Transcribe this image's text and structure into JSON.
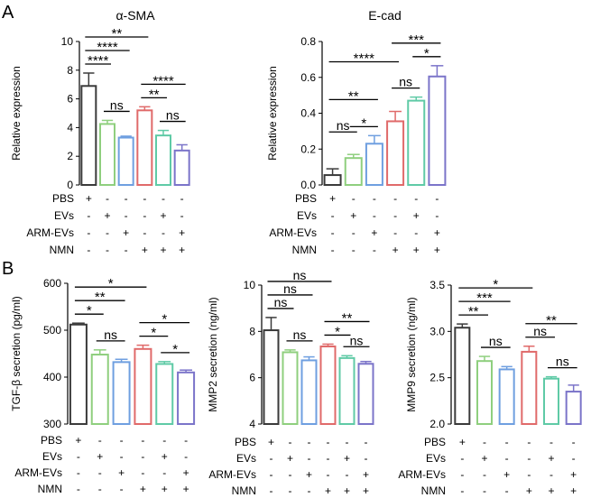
{
  "panel_letters": [
    "A",
    "B"
  ],
  "colors": [
    "#3a3a3a",
    "#8fcf7e",
    "#6f9fe0",
    "#e06a6a",
    "#5fcaa6",
    "#7b74c9"
  ],
  "row_labels": [
    "PBS",
    "EVs",
    "ARM-EVs",
    "NMN"
  ],
  "treatment_signs": [
    [
      "+",
      "-",
      "-",
      "-",
      "-",
      "-"
    ],
    [
      "-",
      "+",
      "-",
      "-",
      "+",
      "-"
    ],
    [
      "-",
      "-",
      "+",
      "-",
      "-",
      "+"
    ],
    [
      "-",
      "-",
      "-",
      "+",
      "+",
      "+"
    ]
  ],
  "chart_data": [
    {
      "type": "bar",
      "panel": "A",
      "title": "α-SMA",
      "ylabel": "Relative expression",
      "ylim": [
        0,
        10
      ],
      "yticks": [
        "0",
        "2",
        "4",
        "6",
        "8",
        "10"
      ],
      "values": [
        6.9,
        4.25,
        3.3,
        5.2,
        3.45,
        2.4
      ],
      "errors": [
        0.9,
        0.25,
        0.1,
        0.25,
        0.35,
        0.4
      ],
      "significance": [
        {
          "i": 0,
          "j": 3,
          "label": "**",
          "level": 3
        },
        {
          "i": 0,
          "j": 2,
          "label": "****",
          "level": 2
        },
        {
          "i": 0,
          "j": 1,
          "label": "****",
          "level": 1
        },
        {
          "i": 1,
          "j": 2,
          "label": "ns",
          "level": 1
        },
        {
          "i": 3,
          "j": 5,
          "label": "****",
          "level": 2
        },
        {
          "i": 3,
          "j": 4,
          "label": "**",
          "level": 1
        },
        {
          "i": 4,
          "j": 5,
          "label": "ns",
          "level": 1
        }
      ]
    },
    {
      "type": "bar",
      "panel": "A",
      "title": "E-cad",
      "ylabel": "Relative expression",
      "ylim": [
        0,
        0.8
      ],
      "yticks": [
        "0.0",
        "0.2",
        "0.4",
        "0.6",
        "0.8"
      ],
      "values": [
        0.055,
        0.15,
        0.23,
        0.355,
        0.47,
        0.605
      ],
      "errors": [
        0.035,
        0.02,
        0.045,
        0.055,
        0.02,
        0.06
      ],
      "significance": [
        {
          "i": 0,
          "j": 3,
          "label": "****",
          "level": 4
        },
        {
          "i": 0,
          "j": 2,
          "label": "**",
          "level": 3
        },
        {
          "i": 0,
          "j": 1,
          "label": "ns",
          "level": 2
        },
        {
          "i": 1,
          "j": 2,
          "label": "*",
          "level": 1
        },
        {
          "i": 3,
          "j": 5,
          "label": "***",
          "level": 2
        },
        {
          "i": 3,
          "j": 4,
          "label": "ns",
          "level": 1
        },
        {
          "i": 4,
          "j": 5,
          "label": "*",
          "level": 1
        }
      ]
    },
    {
      "type": "bar",
      "panel": "B",
      "title": "",
      "ylabel": "TGF-β secretion (pg/ml)",
      "ylim": [
        300,
        600
      ],
      "yticks": [
        "300",
        "400",
        "500",
        "600"
      ],
      "values": [
        512,
        448,
        432,
        460,
        428,
        410
      ],
      "errors": [
        3,
        10,
        6,
        8,
        5,
        5
      ],
      "significance": [
        {
          "i": 0,
          "j": 3,
          "label": "*",
          "level": 3
        },
        {
          "i": 0,
          "j": 2,
          "label": "**",
          "level": 2
        },
        {
          "i": 0,
          "j": 1,
          "label": "*",
          "level": 1
        },
        {
          "i": 1,
          "j": 2,
          "label": "ns",
          "level": 1
        },
        {
          "i": 3,
          "j": 5,
          "label": "*",
          "level": 2
        },
        {
          "i": 3,
          "j": 4,
          "label": "*",
          "level": 1
        },
        {
          "i": 4,
          "j": 5,
          "label": "*",
          "level": 1
        }
      ]
    },
    {
      "type": "bar",
      "panel": "B",
      "title": "",
      "ylabel": "MMP2 secretion (ng/ml)",
      "ylim": [
        4,
        10
      ],
      "yticks": [
        "4",
        "6",
        "8",
        "10"
      ],
      "values": [
        8.05,
        7.1,
        6.75,
        7.35,
        6.85,
        6.6
      ],
      "errors": [
        0.55,
        0.1,
        0.15,
        0.1,
        0.1,
        0.1
      ],
      "significance": [
        {
          "i": 0,
          "j": 3,
          "label": "ns",
          "level": 3
        },
        {
          "i": 0,
          "j": 2,
          "label": "ns",
          "level": 2
        },
        {
          "i": 0,
          "j": 1,
          "label": "ns",
          "level": 1
        },
        {
          "i": 1,
          "j": 2,
          "label": "ns",
          "level": 1
        },
        {
          "i": 3,
          "j": 5,
          "label": "**",
          "level": 2
        },
        {
          "i": 3,
          "j": 4,
          "label": "*",
          "level": 1
        },
        {
          "i": 4,
          "j": 5,
          "label": "ns",
          "level": 1
        }
      ]
    },
    {
      "type": "bar",
      "panel": "B",
      "title": "",
      "ylabel": "MMP9 secretion (ng/ml)",
      "ylim": [
        2.0,
        3.5
      ],
      "yticks": [
        "2.0",
        "2.5",
        "3.0",
        "3.5"
      ],
      "values": [
        3.04,
        2.68,
        2.59,
        2.78,
        2.49,
        2.35
      ],
      "errors": [
        0.04,
        0.05,
        0.03,
        0.06,
        0.02,
        0.07
      ],
      "significance": [
        {
          "i": 0,
          "j": 3,
          "label": "*",
          "level": 3
        },
        {
          "i": 0,
          "j": 2,
          "label": "***",
          "level": 2
        },
        {
          "i": 0,
          "j": 1,
          "label": "**",
          "level": 1
        },
        {
          "i": 1,
          "j": 2,
          "label": "ns",
          "level": 1
        },
        {
          "i": 3,
          "j": 5,
          "label": "**",
          "level": 2
        },
        {
          "i": 3,
          "j": 4,
          "label": "ns",
          "level": 1
        },
        {
          "i": 4,
          "j": 5,
          "label": "ns",
          "level": 1
        }
      ]
    }
  ]
}
